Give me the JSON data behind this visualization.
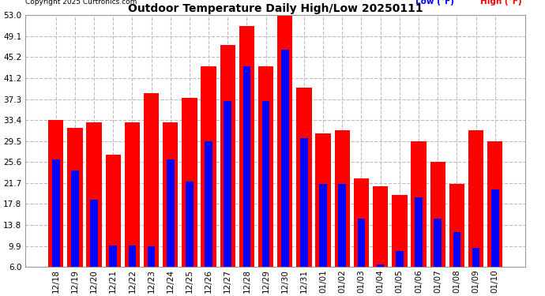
{
  "title": "Outdoor Temperature Daily High/Low 20250111",
  "copyright": "Copyright 2025 Curtronics.com",
  "legend_low": "Low (°F)",
  "legend_high": "High (°F)",
  "low_color": "#0000ff",
  "high_color": "#ff0000",
  "background_color": "#ffffff",
  "grid_color": "#bbbbbb",
  "yticks": [
    6.0,
    9.9,
    13.8,
    17.8,
    21.7,
    25.6,
    29.5,
    33.4,
    37.3,
    41.2,
    45.2,
    49.1,
    53.0
  ],
  "dates": [
    "12/18",
    "12/19",
    "12/20",
    "12/21",
    "12/22",
    "12/23",
    "12/24",
    "12/25",
    "12/26",
    "12/27",
    "12/28",
    "12/29",
    "12/30",
    "12/31",
    "01/01",
    "01/02",
    "01/03",
    "01/04",
    "01/05",
    "01/06",
    "01/07",
    "01/08",
    "01/09",
    "01/10"
  ],
  "highs": [
    33.4,
    32.0,
    33.0,
    27.0,
    33.0,
    38.5,
    33.0,
    37.5,
    43.5,
    47.5,
    51.0,
    43.5,
    53.0,
    39.5,
    31.0,
    31.5,
    22.5,
    21.0,
    19.5,
    29.5,
    25.6,
    21.5,
    31.5,
    29.5
  ],
  "lows": [
    26.0,
    24.0,
    18.5,
    10.0,
    10.0,
    9.9,
    26.0,
    22.0,
    29.5,
    37.0,
    43.5,
    37.0,
    46.5,
    30.0,
    21.5,
    21.5,
    15.0,
    6.5,
    9.0,
    19.0,
    15.0,
    12.5,
    9.5,
    20.5
  ],
  "ylim": [
    6.0,
    53.0
  ],
  "bar_width": 0.4,
  "figsize": [
    6.9,
    3.75
  ],
  "dpi": 100
}
